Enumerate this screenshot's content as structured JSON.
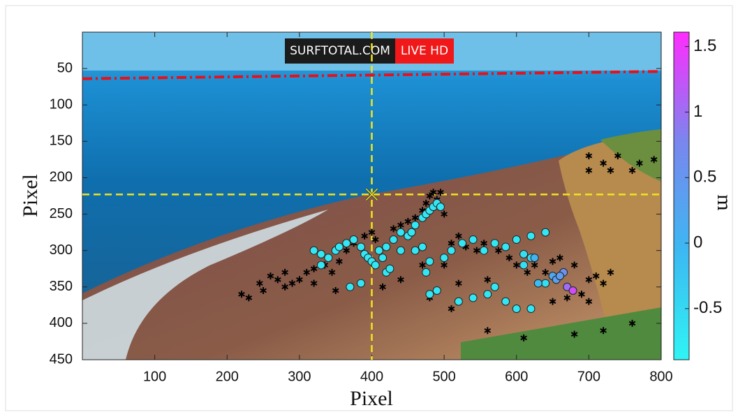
{
  "chart_data": {
    "type": "scatter",
    "x_label": "Pixel",
    "y_label": "Pixel",
    "colorbar_label": "m",
    "watermark": [
      "SURFTOTAL.COM",
      "LIVE HD"
    ],
    "xlim": [
      0,
      800
    ],
    "ylim": [
      0,
      450
    ],
    "y_reversed": true,
    "xticks": [
      100,
      200,
      300,
      400,
      500,
      600,
      700,
      800
    ],
    "yticks": [
      50,
      100,
      150,
      200,
      250,
      300,
      350,
      400,
      450
    ],
    "clim": [
      -0.89,
      1.61
    ],
    "cticks": [
      1.5,
      1,
      0.5,
      0,
      -0.5
    ],
    "colormap": [
      "#30f4f4",
      "#3cb8f2",
      "#7a86ee",
      "#ff2cff"
    ],
    "boundary_line": {
      "x": [
        0,
        800
      ],
      "y": [
        64,
        54
      ],
      "color": "#e8101a"
    },
    "crosshair": {
      "x": 400,
      "y": 223,
      "color": "#f2e421"
    },
    "points": {
      "x": [
        320,
        330,
        340,
        350,
        355,
        365,
        375,
        385,
        390,
        395,
        400,
        405,
        410,
        415,
        420,
        430,
        440,
        450,
        455,
        460,
        470,
        475,
        480,
        485,
        490,
        495,
        330,
        370,
        385,
        420,
        425,
        440,
        460,
        470,
        480,
        500,
        510,
        525,
        540,
        555,
        570,
        585,
        600,
        620,
        640,
        475,
        480,
        490,
        520,
        540,
        560,
        570,
        585,
        600,
        620,
        610,
        620,
        640,
        610,
        630,
        650,
        655,
        665,
        660,
        670,
        678,
        625
      ],
      "y": [
        300,
        305,
        310,
        300,
        295,
        290,
        285,
        295,
        305,
        310,
        315,
        320,
        300,
        310,
        295,
        285,
        275,
        280,
        275,
        265,
        255,
        250,
        245,
        240,
        235,
        240,
        320,
        350,
        345,
        330,
        325,
        300,
        300,
        295,
        315,
        310,
        300,
        290,
        285,
        300,
        290,
        295,
        285,
        280,
        275,
        330,
        360,
        355,
        370,
        365,
        360,
        350,
        370,
        380,
        380,
        305,
        310,
        345,
        320,
        345,
        335,
        340,
        330,
        335,
        350,
        355,
        310
      ],
      "values": [
        -0.7,
        -0.7,
        -0.7,
        -0.7,
        -0.7,
        -0.7,
        -0.7,
        -0.7,
        -0.7,
        -0.7,
        -0.7,
        -0.7,
        -0.7,
        -0.7,
        -0.7,
        -0.7,
        -0.7,
        -0.7,
        -0.7,
        -0.7,
        -0.7,
        -0.7,
        -0.7,
        -0.7,
        -0.7,
        -0.7,
        -0.7,
        -0.7,
        -0.7,
        -0.7,
        -0.7,
        -0.7,
        -0.7,
        -0.7,
        -0.7,
        -0.7,
        -0.7,
        -0.7,
        -0.7,
        -0.7,
        -0.7,
        -0.7,
        -0.7,
        -0.7,
        -0.7,
        -0.7,
        -0.7,
        -0.7,
        -0.7,
        -0.7,
        -0.7,
        -0.7,
        -0.7,
        -0.7,
        -0.7,
        -0.6,
        -0.5,
        -0.6,
        -0.6,
        -0.1,
        0.2,
        0.35,
        0.6,
        0.4,
        1.0,
        1.3,
        0.0
      ]
    },
    "stars": {
      "color": "#000000",
      "x": [
        220,
        230,
        245,
        260,
        270,
        280,
        290,
        300,
        310,
        320,
        335,
        345,
        355,
        365,
        375,
        390,
        400,
        405,
        430,
        440,
        450,
        460,
        470,
        475,
        480,
        485,
        490,
        495,
        500,
        510,
        520,
        530,
        545,
        555,
        575,
        590,
        600,
        615,
        625,
        640,
        650,
        660,
        680,
        700,
        710,
        720,
        730,
        690,
        670,
        700,
        650,
        560,
        520,
        500,
        470,
        440,
        415,
        350,
        320,
        280,
        250,
        480,
        510,
        560,
        610,
        680,
        720,
        760,
        770,
        790,
        700,
        720,
        740,
        760,
        730,
        700
      ],
      "y": [
        360,
        365,
        345,
        335,
        340,
        330,
        345,
        340,
        330,
        325,
        320,
        330,
        315,
        300,
        290,
        280,
        275,
        285,
        270,
        265,
        260,
        255,
        245,
        235,
        225,
        220,
        230,
        220,
        250,
        290,
        280,
        295,
        300,
        290,
        300,
        310,
        320,
        330,
        320,
        330,
        315,
        310,
        320,
        340,
        335,
        345,
        330,
        360,
        365,
        370,
        370,
        340,
        345,
        320,
        320,
        340,
        350,
        355,
        345,
        350,
        355,
        365,
        380,
        410,
        420,
        415,
        410,
        400,
        180,
        175,
        170,
        180,
        170,
        190,
        190,
        190
      ]
    }
  }
}
